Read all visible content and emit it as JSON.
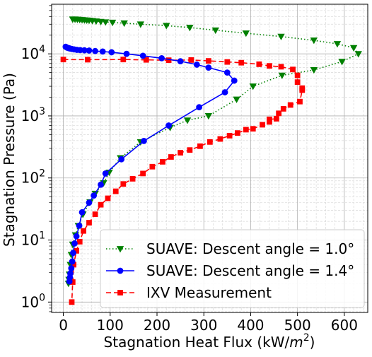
{
  "chart_data": {
    "type": "line",
    "xlabel_main": "Stagnation Heat Flux (kW/",
    "xlabel_unit_base": "m",
    "xlabel_unit_exp": "2",
    "xlabel_close": ")",
    "ylabel": "Stagnation Pressure (Pa)",
    "xlim": [
      -25,
      650
    ],
    "ylim": [
      0.68,
      63000
    ],
    "y_scale": "log",
    "x_ticks": [
      0,
      100,
      200,
      300,
      400,
      500,
      600
    ],
    "x_tick_labels": [
      "0",
      "100",
      "200",
      "300",
      "400",
      "500",
      "600"
    ],
    "y_ticks": [
      1,
      10,
      100,
      1000,
      10000
    ],
    "y_tick_bases": [
      "10",
      "10",
      "10",
      "10",
      "10"
    ],
    "y_tick_exps": [
      "0",
      "1",
      "2",
      "3",
      "4"
    ],
    "grid": true,
    "minor_grid": true,
    "legend_position": "lower-right",
    "series": [
      {
        "name": "SUAVE: Descent angle = 1.0°",
        "color": "#008000",
        "linestyle": "dotted",
        "marker": "triangle-down",
        "points": [
          [
            20,
            36000
          ],
          [
            25,
            36000
          ],
          [
            30,
            35800
          ],
          [
            35,
            35600
          ],
          [
            40,
            35300
          ],
          [
            45,
            35000
          ],
          [
            50,
            34800
          ],
          [
            55,
            34500
          ],
          [
            62,
            34100
          ],
          [
            70,
            33600
          ],
          [
            80,
            33000
          ],
          [
            90,
            32500
          ],
          [
            105,
            32000
          ],
          [
            130,
            31200
          ],
          [
            165,
            30000
          ],
          [
            220,
            28500
          ],
          [
            270,
            26500
          ],
          [
            325,
            24000
          ],
          [
            390,
            21500
          ],
          [
            465,
            19000
          ],
          [
            535,
            16500
          ],
          [
            585,
            14500
          ],
          [
            620,
            12500
          ],
          [
            630,
            10000
          ],
          [
            595,
            7500
          ],
          [
            535,
            5500
          ],
          [
            467,
            4500
          ],
          [
            405,
            3000
          ],
          [
            370,
            1850
          ],
          [
            310,
            1000
          ],
          [
            265,
            850
          ],
          [
            228,
            650
          ],
          [
            165,
            380
          ],
          [
            122,
            210
          ],
          [
            98,
            123
          ],
          [
            86,
            83
          ],
          [
            68,
            56
          ],
          [
            57,
            41
          ],
          [
            42,
            26
          ],
          [
            32,
            17
          ],
          [
            26,
            12
          ],
          [
            20,
            8.5
          ],
          [
            17,
            5.8
          ],
          [
            15,
            4.0
          ],
          [
            13,
            2.8
          ],
          [
            12,
            2.3
          ],
          [
            11,
            2.0
          ]
        ]
      },
      {
        "name": "SUAVE: Descent angle = 1.4°",
        "color": "#0000ff",
        "linestyle": "solid",
        "marker": "circle",
        "points": [
          [
            5,
            13000
          ],
          [
            8,
            12600
          ],
          [
            11,
            12400
          ],
          [
            14,
            12200
          ],
          [
            18,
            12000
          ],
          [
            23,
            11800
          ],
          [
            29,
            11600
          ],
          [
            36,
            11500
          ],
          [
            45,
            11400
          ],
          [
            55,
            11300
          ],
          [
            68,
            11100
          ],
          [
            84,
            10900
          ],
          [
            103,
            10600
          ],
          [
            135,
            10000
          ],
          [
            170,
            9300
          ],
          [
            210,
            8500
          ],
          [
            250,
            7600
          ],
          [
            285,
            6700
          ],
          [
            310,
            6000
          ],
          [
            350,
            5000
          ],
          [
            365,
            3700
          ],
          [
            345,
            2400
          ],
          [
            290,
            1380
          ],
          [
            225,
            700
          ],
          [
            172,
            395
          ],
          [
            124,
            200
          ],
          [
            90,
            118
          ],
          [
            80,
            78
          ],
          [
            65,
            52
          ],
          [
            55,
            40
          ],
          [
            40,
            28
          ],
          [
            34,
            17
          ],
          [
            28,
            11.5
          ],
          [
            24,
            8.8
          ],
          [
            21,
            6.2
          ],
          [
            19,
            4.5
          ],
          [
            17,
            3.5
          ],
          [
            15,
            2.9
          ],
          [
            14,
            2.5
          ],
          [
            13,
            2.15
          ]
        ]
      },
      {
        "name": "IXV Measurement",
        "color": "#ff0000",
        "linestyle": "dashed",
        "marker": "square",
        "points": [
          [
            0,
            8100
          ],
          [
            52,
            8050
          ],
          [
            128,
            8100
          ],
          [
            177,
            8000
          ],
          [
            225,
            7900
          ],
          [
            273,
            7950
          ],
          [
            310,
            7700
          ],
          [
            350,
            7400
          ],
          [
            380,
            7200
          ],
          [
            418,
            6800
          ],
          [
            440,
            6400
          ],
          [
            465,
            6200
          ],
          [
            490,
            5600
          ],
          [
            500,
            4500
          ],
          [
            500,
            3500
          ],
          [
            510,
            2800
          ],
          [
            510,
            2600
          ],
          [
            505,
            1700
          ],
          [
            485,
            1500
          ],
          [
            470,
            1300
          ],
          [
            460,
            1100
          ],
          [
            455,
            900
          ],
          [
            440,
            880
          ],
          [
            440,
            800
          ],
          [
            425,
            720
          ],
          [
            405,
            620
          ],
          [
            390,
            600
          ],
          [
            372,
            530
          ],
          [
            355,
            480
          ],
          [
            335,
            425
          ],
          [
            313,
            380
          ],
          [
            292,
            325
          ],
          [
            270,
            282
          ],
          [
            250,
            255
          ],
          [
            230,
            218
          ],
          [
            212,
            182
          ],
          [
            190,
            152
          ],
          [
            170,
            118
          ],
          [
            148,
            97
          ],
          [
            128,
            80
          ],
          [
            112,
            61
          ],
          [
            95,
            47
          ],
          [
            80,
            37
          ],
          [
            68,
            26
          ],
          [
            55,
            19
          ],
          [
            43,
            14
          ],
          [
            35,
            9.4
          ],
          [
            28,
            6.7
          ],
          [
            22,
            4.0
          ],
          [
            20,
            2.1
          ],
          [
            18,
            1.0
          ]
        ]
      }
    ]
  }
}
